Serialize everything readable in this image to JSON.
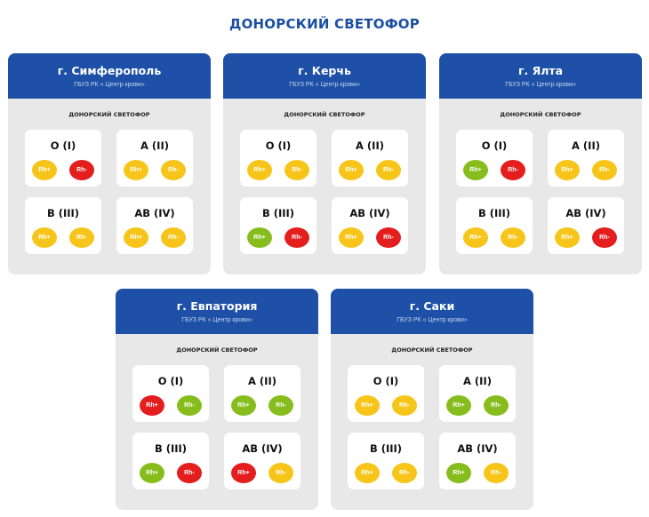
{
  "page_title": "ДОНОРСКИЙ СВЕТОФОР",
  "colors": {
    "red": "#e41d1d",
    "yellow": "#f7c51a",
    "green": "#86bd1d",
    "header_blue": "#1d50a6"
  },
  "cards": [
    {
      "city": "г. Симферополь",
      "org": "ГБУЗ РК « Центр крови»",
      "label": "ДОНОРСКИЙ СВЕТОФОР",
      "groups": [
        {
          "name": "O (I)",
          "dots": [
            {
              "label": "Rh+",
              "status": "yellow"
            },
            {
              "label": "Rh-",
              "status": "red"
            }
          ]
        },
        {
          "name": "A (II)",
          "dots": [
            {
              "label": "Rh+",
              "status": "yellow"
            },
            {
              "label": "Rh-",
              "status": "yellow"
            }
          ]
        },
        {
          "name": "B (III)",
          "dots": [
            {
              "label": "Rh+",
              "status": "yellow"
            },
            {
              "label": "Rh-",
              "status": "yellow"
            }
          ]
        },
        {
          "name": "AB (IV)",
          "dots": [
            {
              "label": "Rh+",
              "status": "yellow"
            },
            {
              "label": "Rh-",
              "status": "yellow"
            }
          ]
        }
      ]
    },
    {
      "city": "г. Керчь",
      "org": "ГБУЗ РК « Центр крови»",
      "label": "ДОНОРСКИЙ СВЕТОФОР",
      "groups": [
        {
          "name": "O (I)",
          "dots": [
            {
              "label": "Rh+",
              "status": "yellow"
            },
            {
              "label": "Rh-",
              "status": "yellow"
            }
          ]
        },
        {
          "name": "A (II)",
          "dots": [
            {
              "label": "Rh+",
              "status": "yellow"
            },
            {
              "label": "Rh-",
              "status": "yellow"
            }
          ]
        },
        {
          "name": "B (III)",
          "dots": [
            {
              "label": "Rh+",
              "status": "green"
            },
            {
              "label": "Rh-",
              "status": "red"
            }
          ]
        },
        {
          "name": "AB (IV)",
          "dots": [
            {
              "label": "Rh+",
              "status": "yellow"
            },
            {
              "label": "Rh-",
              "status": "red"
            }
          ]
        }
      ]
    },
    {
      "city": "г. Ялта",
      "org": "ГБУЗ РК « Центр крови»",
      "label": "ДОНОРСКИЙ СВЕТОФОР",
      "groups": [
        {
          "name": "O (I)",
          "dots": [
            {
              "label": "Rh+",
              "status": "green"
            },
            {
              "label": "Rh-",
              "status": "red"
            }
          ]
        },
        {
          "name": "A (II)",
          "dots": [
            {
              "label": "Rh+",
              "status": "yellow"
            },
            {
              "label": "Rh-",
              "status": "yellow"
            }
          ]
        },
        {
          "name": "B (III)",
          "dots": [
            {
              "label": "Rh+",
              "status": "yellow"
            },
            {
              "label": "Rh-",
              "status": "yellow"
            }
          ]
        },
        {
          "name": "AB (IV)",
          "dots": [
            {
              "label": "Rh+",
              "status": "yellow"
            },
            {
              "label": "Rh-",
              "status": "red"
            }
          ]
        }
      ]
    },
    {
      "city": "г. Евпатория",
      "org": "ГБУЗ РК « Центр крови»",
      "label": "ДОНОРСКИЙ СВЕТОФОР",
      "groups": [
        {
          "name": "O (I)",
          "dots": [
            {
              "label": "Rh+",
              "status": "red"
            },
            {
              "label": "Rh-",
              "status": "green"
            }
          ]
        },
        {
          "name": "A (II)",
          "dots": [
            {
              "label": "Rh+",
              "status": "green"
            },
            {
              "label": "Rh-",
              "status": "green"
            }
          ]
        },
        {
          "name": "B (III)",
          "dots": [
            {
              "label": "Rh+",
              "status": "green"
            },
            {
              "label": "Rh-",
              "status": "red"
            }
          ]
        },
        {
          "name": "AB (IV)",
          "dots": [
            {
              "label": "Rh+",
              "status": "red"
            },
            {
              "label": "Rh-",
              "status": "yellow"
            }
          ]
        }
      ]
    },
    {
      "city": "г. Саки",
      "org": "ГБУЗ РК « Центр крови»",
      "label": "ДОНОРСКИЙ СВЕТОФОР",
      "groups": [
        {
          "name": "O (I)",
          "dots": [
            {
              "label": "Rh+",
              "status": "yellow"
            },
            {
              "label": "Rh-",
              "status": "yellow"
            }
          ]
        },
        {
          "name": "A (II)",
          "dots": [
            {
              "label": "Rh+",
              "status": "green"
            },
            {
              "label": "Rh-",
              "status": "green"
            }
          ]
        },
        {
          "name": "B (III)",
          "dots": [
            {
              "label": "Rh+",
              "status": "yellow"
            },
            {
              "label": "Rh-",
              "status": "yellow"
            }
          ]
        },
        {
          "name": "AB (IV)",
          "dots": [
            {
              "label": "Rh+",
              "status": "green"
            },
            {
              "label": "Rh-",
              "status": "yellow"
            }
          ]
        }
      ]
    }
  ]
}
